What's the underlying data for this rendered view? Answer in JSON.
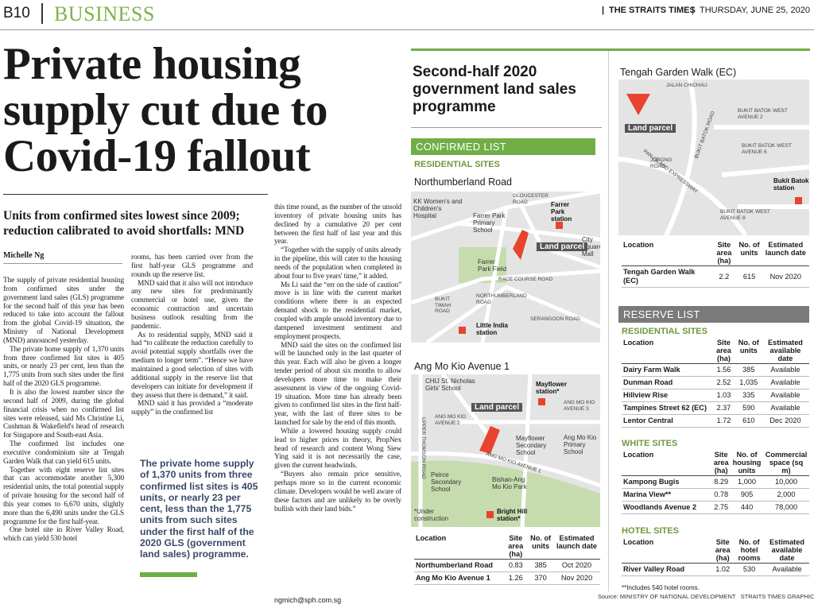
{
  "header": {
    "page": "B10",
    "section": "BUSINESS",
    "paper": "THE STRAITS TIMES",
    "date": "THURSDAY, JUNE 25, 2020"
  },
  "headline": [
    "Private housing",
    "supply cut due to",
    "Covid-19 fallout"
  ],
  "subheadline": "Units from confirmed sites lowest since 2009; reduction calibrated to avoid shortfalls: MND",
  "byline": "Michelle Ng",
  "article": {
    "columns": [
      [
        "The supply of private residential housing from confirmed sites under the government land sales (GLS) programme for the second half of this year has been reduced to take into account the fallout from the global Covid-19 situation, the Ministry of National Development (MND) announced yesterday.",
        "The private home supply of 1,370 units from three confirmed list sites is 405 units, or nearly 23 per cent, less than the 1,775 units from such sites under the first half of the 2020 GLS programme.",
        "It is also the lowest number since the second half of 2009, during the global financial crisis when no confirmed list sites were released, said Ms Christine Li, Cushman & Wakefield's head of research for Singapore and South-east Asia.",
        "The confirmed list includes one executive condominium site at Tengah Garden Walk that can yield 615 units.",
        "Together with eight reserve list sites that can accommodate another 5,300 residential units, the total potential supply of private housing for the second half of this year comes to 6,670 units, slightly more than the 6,490 units under the GLS programme for the first half-year.",
        "One hotel site in River Valley Road, which can yield 530 hotel"
      ],
      [
        "rooms, has been carried over from the first half-year GLS programme and rounds up the reserve list.",
        "MND said that it also will not introduce any new sites for predominantly commercial or hotel use, given the economic contraction and uncertain business outlook resulting from the pandemic.",
        "As to residential supply, MND said it had “to calibrate the reduction carefully to avoid potential supply shortfalls over the medium to longer term”. “Hence we have maintained a good selection of sites with additional supply in the reserve list that developers can initiate for development if they assess that there is demand,” it said.",
        "MND said it has provided a “moderate supply” in the confirmed list"
      ],
      [
        "this time round, as the number of the unsold inventory of private housing units has declined by a cumulative 20 per cent between the first half of last year and this year.",
        "“Together with the supply of units already in the pipeline, this will cater to the housing needs of the population when completed in about four to five years' time,” it added.",
        "Ms Li said the “err on the side of caution” move is in line with the current market conditions where there is an expected demand shock to the residential market, coupled with ample unsold inventory due to dampened investment sentiment and employment prospects.",
        "MND said the sites on the confirmed list will be launched only in the last quarter of this year. Each will also be given a longer tender period of about six months to allow developers more time to make their assessment in view of the ongoing Covid-19 situation. More time has already been given to confirmed list sites in the first half-year, with the last of three sites to be launched for sale by the end of this month.",
        "While a lowered housing supply could lead to higher prices in theory, PropNex head of research and content Wong Siew Ying said it is not necessarily the case, given the current headwinds.",
        "“Buyers also remain price sensitive, perhaps more so in the current economic climate. Developers would be well aware of these factors and are unlikely to be overly bullish with their land bids.”"
      ]
    ],
    "pull_quote": "The private home supply of 1,370 units from three confirmed list sites is 405 units, or nearly 23 per cent, less than the 1,775 units from such sites under the first half of the 2020 GLS (government land sales) programme.",
    "email": "ngmich@sph.com.sg"
  },
  "graphic": {
    "title": "Second-half 2020 government land sales programme",
    "confirmed": {
      "label": "CONFIRMED LIST",
      "subsection": "RESIDENTIAL SITES"
    },
    "maps": [
      {
        "title": "Northumberland Road",
        "labels": [
          "KK Women's and Children's Hospital",
          "GLOUCESTER ROAD",
          "Farrer Park station",
          "Farrer Park Primary School",
          "City Square Mall",
          "Land parcel",
          "Farrer Park Field",
          "RACE COURSE ROAD",
          "BUKIT TIMAH ROAD",
          "NORTHUMBERLAND ROAD",
          "SERANGOON ROAD",
          "Little India station"
        ]
      },
      {
        "title": "Ang Mo Kio Avenue 1",
        "labels": [
          "CHIJ St. Nicholas Girls' School",
          "Mayflower station*",
          "ANG MO KIO AVENUE 3",
          "Land parcel",
          "ANG MO KIO AVENUE 2",
          "UPPER THOMSON ROAD",
          "Mayflower Secondary School",
          "Ang Mo Kio Primary School",
          "ANG MO KIO AVENUE 1",
          "Peirce Secondary School",
          "Bishan-Ang Mo Kio Park",
          "*Under construction",
          "Bright Hill station*"
        ]
      },
      {
        "title": "Tengah Garden Walk (EC)",
        "labels": [
          "JALAN CHICHAU",
          "Land parcel",
          "BUKIT BATOK WEST AVENUE 2",
          "BUKIT BATOK WEST AVENUE 6",
          "JURONG ROAD",
          "PAN-ISLAND EXPRESSWAY",
          "BUKIT BATOK ROAD",
          "Bukit Batok station",
          "BUKIT BATOK WEST AVENUE 8"
        ]
      }
    ],
    "tables": [
      {
        "headers": [
          "Location",
          "Site area (ha)",
          "No. of units",
          "Estimated launch date"
        ],
        "rows": [
          [
            "Northumberland Road",
            "0.83",
            "385",
            "Oct 2020"
          ],
          [
            "Ang Mo Kio Avenue 1",
            "1.26",
            "370",
            "Nov 2020"
          ]
        ]
      },
      {
        "headers": [
          "Location",
          "Site area (ha)",
          "No. of units",
          "Estimated launch date"
        ],
        "rows": [
          [
            "Tengah Garden Walk (EC)",
            "2.2",
            "615",
            "Nov 2020"
          ]
        ]
      },
      {
        "title": "RESIDENTIAL SITES",
        "headers": [
          "Location",
          "Site area (ha)",
          "No. of units",
          "Estimated available date"
        ],
        "rows": [
          [
            "Dairy Farm Walk",
            "1.56",
            "385",
            "Available"
          ],
          [
            "Dunman Road",
            "2.52",
            "1,035",
            "Available"
          ],
          [
            "Hillview Rise",
            "1.03",
            "335",
            "Available"
          ],
          [
            "Tampines Street 62 (EC)",
            "2.37",
            "590",
            "Available"
          ],
          [
            "Lentor Central",
            "1.72",
            "610",
            "Dec 2020"
          ]
        ]
      },
      {
        "title": "WHITE SITES",
        "headers": [
          "Location",
          "Site area (ha)",
          "No. of housing units",
          "Commercial space (sq m)"
        ],
        "rows": [
          [
            "Kampong Bugis",
            "8.29",
            "1,000",
            "10,000"
          ],
          [
            "Marina View**",
            "0.78",
            "905",
            "2,000"
          ],
          [
            "Woodlands Avenue 2",
            "2.75",
            "440",
            "78,000"
          ]
        ]
      },
      {
        "title": "HOTEL SITES",
        "headers": [
          "Location",
          "Site area (ha)",
          "No. of hotel rooms",
          "Estimated available date"
        ],
        "rows": [
          [
            "River Valley Road",
            "1.02",
            "530",
            "Available"
          ]
        ]
      }
    ],
    "reserve": {
      "label": "RESERVE LIST"
    },
    "footnote": "**Includes 540 hotel rooms.",
    "source": "Source: MINISTRY OF NATIONAL DEVELOPMENT   STRAITS TIMES GRAPHICS"
  }
}
